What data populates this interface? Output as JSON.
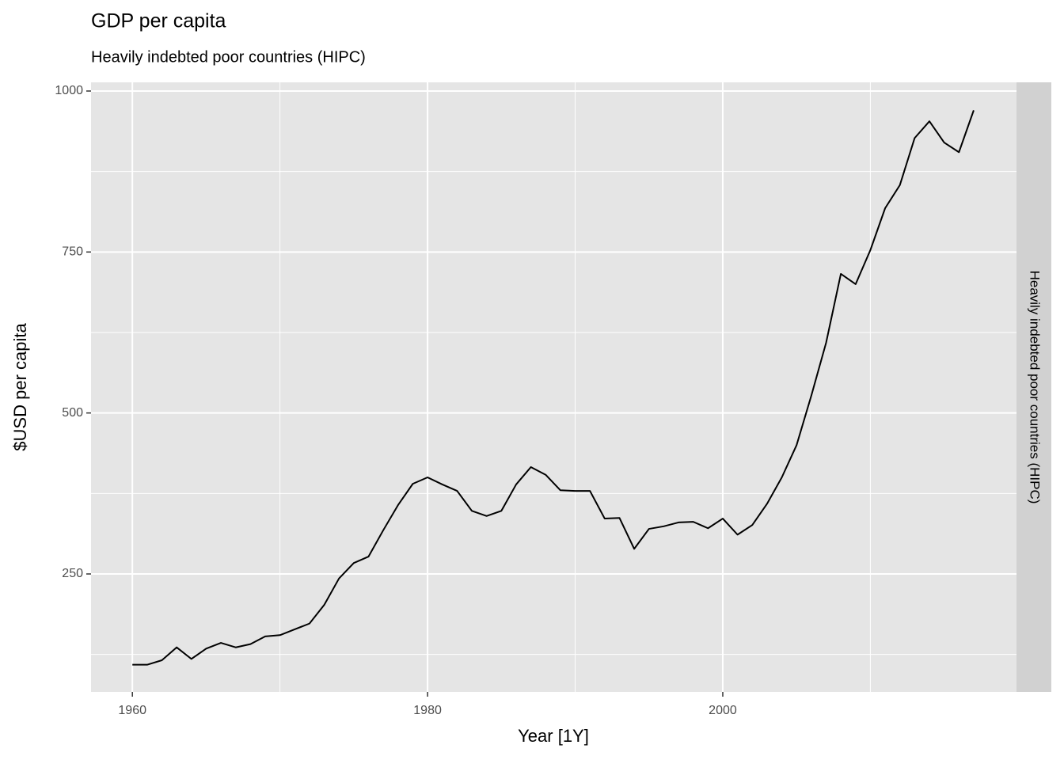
{
  "chart_data": {
    "type": "line",
    "title": "GDP per capita",
    "subtitle": "Heavily indebted poor countries (HIPC)",
    "facet_label": "Heavily indebted poor countries (HIPC)",
    "x_label": "Year [1Y]",
    "y_label": "$USD per capita",
    "x": [
      1960,
      1961,
      1962,
      1963,
      1964,
      1965,
      1966,
      1967,
      1968,
      1969,
      1970,
      1971,
      1972,
      1973,
      1974,
      1975,
      1976,
      1977,
      1978,
      1979,
      1980,
      1981,
      1982,
      1983,
      1984,
      1985,
      1986,
      1987,
      1988,
      1989,
      1990,
      1991,
      1992,
      1993,
      1994,
      1995,
      1996,
      1997,
      1998,
      1999,
      2000,
      2001,
      2002,
      2003,
      2004,
      2005,
      2006,
      2007,
      2008,
      2009,
      2010,
      2011,
      2012,
      2013,
      2014,
      2015,
      2016,
      2017
    ],
    "series": [
      {
        "color": "#000000",
        "values": [
          109,
          109,
          116,
          136,
          118,
          134,
          143,
          136,
          141,
          153,
          155,
          164,
          173,
          202,
          243,
          267,
          277,
          318,
          357,
          390,
          400,
          389,
          379,
          348,
          340,
          348,
          389,
          416,
          404,
          380,
          379,
          379,
          336,
          337,
          289,
          320,
          324,
          330,
          331,
          321,
          336,
          311,
          326,
          359,
          400,
          450,
          527,
          609,
          716,
          700,
          753,
          818,
          854,
          927,
          953,
          920,
          905,
          970
        ]
      }
    ],
    "xlim": [
      1957.2,
      2019.9
    ],
    "ylim": [
      66.8,
      1013.5
    ],
    "xticks": [
      1960,
      1980,
      2000
    ],
    "yticks": [
      250,
      500,
      750,
      1000
    ],
    "x_minor_ticks": [
      1970,
      1990,
      2010
    ],
    "y_minor_ticks": [
      125,
      375,
      625,
      875
    ],
    "grid": true
  }
}
